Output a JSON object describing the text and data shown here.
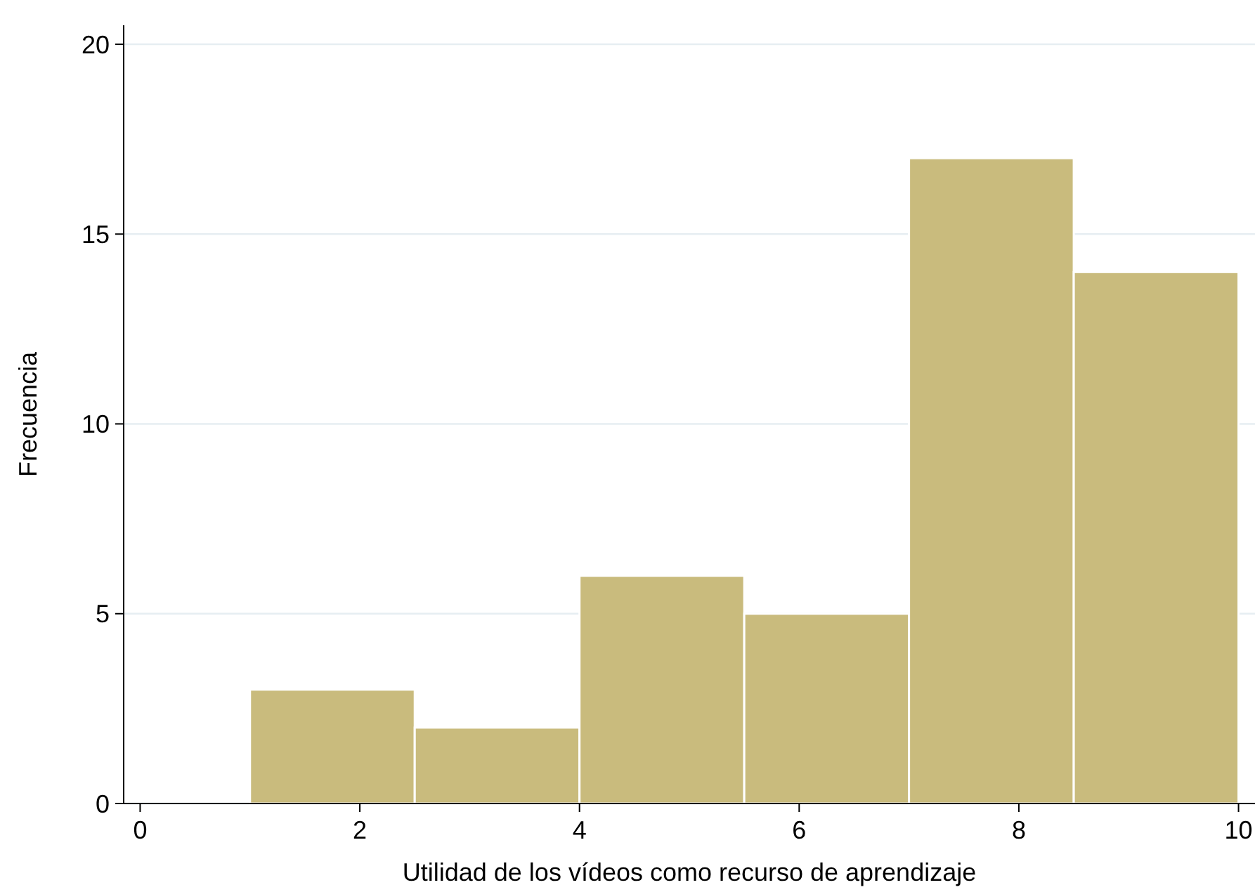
{
  "chart_data": {
    "type": "histogram",
    "xlabel": "Utilidad de los vídeos como recurso de aprendizaje",
    "ylabel": "Frecuencia",
    "bins": [
      1,
      2.5,
      4,
      5.5,
      7,
      8.5,
      10
    ],
    "values": [
      3,
      2,
      6,
      5,
      17,
      14
    ],
    "color": "#c9bb7d",
    "xlim": [
      -0.15,
      10.15
    ],
    "ylim": [
      0,
      20.5
    ],
    "xticks": [
      0,
      2,
      4,
      6,
      8,
      10
    ],
    "yticks": [
      0,
      5,
      10,
      15,
      20
    ],
    "grid": "y"
  }
}
